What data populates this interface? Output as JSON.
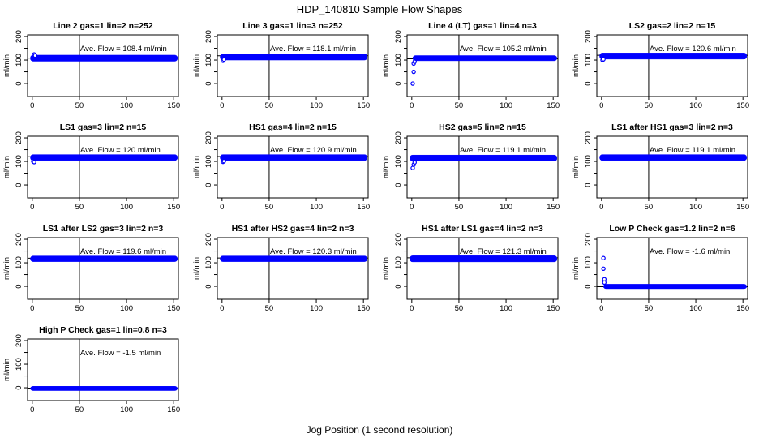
{
  "chart_data": {
    "type": "scatter",
    "title": "HDP_140810  Sample Flow Shapes",
    "xlabel": "Jog Position (1 second resolution)",
    "ylabel": "ml/min",
    "grid_layout": "4 columns x 4 rows, 13 subplots",
    "point_color": "#0000ff",
    "line_color": "#000000",
    "background_color": "#ffffff",
    "xticks": [
      0,
      50,
      100,
      150
    ],
    "yticks_labeled": [
      0,
      100,
      200
    ],
    "yticks_unlabeled": [
      50,
      150
    ],
    "xlim": [
      -5,
      155
    ],
    "ylim": [
      -55,
      207
    ],
    "vline_x": 50,
    "subplots": [
      {
        "title": "Line 2 gas=1 lin=2 n=252",
        "ave_flow": 108.4,
        "annotation": "Ave. Flow =  108.4  ml/min",
        "band": {
          "x": [
            0,
            152
          ],
          "y": [
            95,
            121
          ]
        },
        "transients": [
          [
            2,
            124
          ],
          [
            3,
            119
          ]
        ]
      },
      {
        "title": "Line 3 gas=1 lin=3 n=252",
        "ave_flow": 118.1,
        "annotation": "Ave. Flow =  118.1  ml/min",
        "band": {
          "x": [
            0,
            152
          ],
          "y": [
            100,
            126
          ]
        },
        "transients": [
          [
            1,
            97
          ],
          [
            2,
            102
          ]
        ]
      },
      {
        "title": "Line 4 (LT) gas=1 lin=4 n=3",
        "ave_flow": 105.2,
        "annotation": "Ave. Flow =  105.2  ml/min",
        "band": {
          "x": [
            3,
            152
          ],
          "y": [
            97,
            119
          ]
        },
        "transients": [
          [
            1,
            0
          ],
          [
            2,
            50
          ],
          [
            2,
            85
          ],
          [
            3,
            93
          ]
        ]
      },
      {
        "title": "LS2 gas=2 lin=2 n=15",
        "ave_flow": 120.6,
        "annotation": "Ave. Flow =  120.6  ml/min",
        "band": {
          "x": [
            0,
            152
          ],
          "y": [
            104,
            130
          ]
        },
        "transients": [
          [
            1,
            100
          ],
          [
            2,
            103
          ]
        ]
      },
      {
        "title": "LS1 gas=3 lin=2 n=15",
        "ave_flow": 120,
        "annotation": "Ave. Flow =  120  ml/min",
        "band": {
          "x": [
            0,
            152
          ],
          "y": [
            104,
            129
          ]
        },
        "transients": [
          [
            1,
            100
          ],
          [
            2,
            97
          ]
        ]
      },
      {
        "title": "HS1 gas=4 lin=2 n=15",
        "ave_flow": 120.9,
        "annotation": "Ave. Flow =  120.9  ml/min",
        "band": {
          "x": [
            0,
            152
          ],
          "y": [
            104,
            129
          ]
        },
        "transients": [
          [
            1,
            98
          ],
          [
            2,
            101
          ]
        ]
      },
      {
        "title": "HS2 gas=5 lin=2 n=15",
        "ave_flow": 119.1,
        "annotation": "Ave. Flow =  119.1  ml/min",
        "band": {
          "x": [
            0,
            152
          ],
          "y": [
            101,
            127
          ]
        },
        "transients": [
          [
            1,
            72
          ],
          [
            2,
            86
          ],
          [
            3,
            96
          ]
        ]
      },
      {
        "title": "LS1 after HS1 gas=3 lin=2 n=3",
        "ave_flow": 119.1,
        "annotation": "Ave. Flow =  119.1  ml/min",
        "band": {
          "x": [
            0,
            152
          ],
          "y": [
            104,
            129
          ]
        },
        "transients": []
      },
      {
        "title": "LS1 after LS2 gas=3 lin=2 n=3",
        "ave_flow": 119.6,
        "annotation": "Ave. Flow =  119.6  ml/min",
        "band": {
          "x": [
            0,
            152
          ],
          "y": [
            105,
            129
          ]
        },
        "transients": []
      },
      {
        "title": "HS1 after HS2 gas=4 lin=2 n=3",
        "ave_flow": 120.3,
        "annotation": "Ave. Flow =  120.3  ml/min",
        "band": {
          "x": [
            0,
            152
          ],
          "y": [
            105,
            129
          ]
        },
        "transients": []
      },
      {
        "title": "HS1 after LS1 gas=4 lin=2 n=3",
        "ave_flow": 121.3,
        "annotation": "Ave. Flow =  121.3  ml/min",
        "band": {
          "x": [
            0,
            152
          ],
          "y": [
            104,
            130
          ]
        },
        "transients": []
      },
      {
        "title": "Low P Check gas=1.2 lin=2 n=6",
        "ave_flow": -1.6,
        "annotation": "Ave. Flow =  -1.6  ml/min",
        "band": {
          "x": [
            4,
            152
          ],
          "y": [
            -10,
            9
          ]
        },
        "transients": [
          [
            2,
            120
          ],
          [
            2,
            75
          ],
          [
            3,
            30
          ],
          [
            3,
            16
          ]
        ]
      },
      {
        "title": "High P Check gas=1 lin=0.8 n=3",
        "ave_flow": -1.5,
        "annotation": "Ave. Flow =  -1.5  ml/min",
        "band": {
          "x": [
            0,
            152
          ],
          "y": [
            -12,
            6
          ]
        },
        "transients": []
      }
    ]
  }
}
